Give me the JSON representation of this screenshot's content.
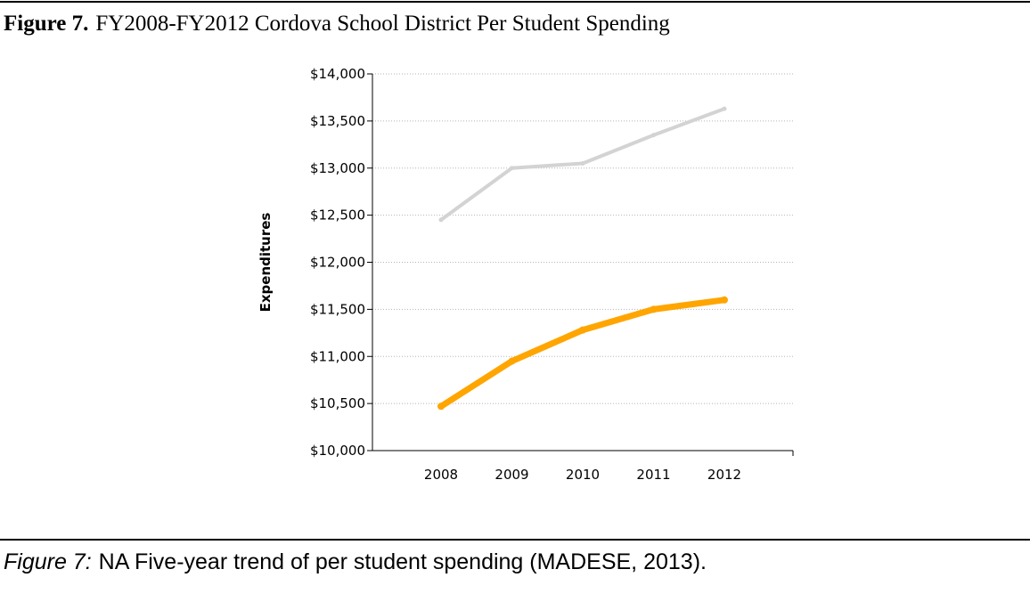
{
  "figure": {
    "number_label": "Figure 7.",
    "title": "FY2008-FY2012 Cordova School District Per Student Spending"
  },
  "caption": {
    "label": "Figure 7:",
    "text": "NA Five-year trend of per student spending (MADESE, 2013)."
  },
  "chart_data": {
    "type": "line",
    "x": [
      2008,
      2009,
      2010,
      2011,
      2012
    ],
    "x_tick_labels": [
      "2008",
      "2009",
      "2010",
      "2011",
      "2012"
    ],
    "ylabel": "Expenditures",
    "ylim": [
      10000,
      14000
    ],
    "y_ticks": [
      10000,
      10500,
      11000,
      11500,
      12000,
      12500,
      13000,
      13500,
      14000
    ],
    "y_tick_labels": [
      "$10,000",
      "$10,500",
      "$11,000",
      "$11,500",
      "$12,000",
      "$12,500",
      "$13,000",
      "$13,500",
      "$14,000"
    ],
    "grid": "horizontal dotted",
    "legend": "none",
    "series": [
      {
        "values": [
          12450,
          13000,
          13050,
          13350,
          13630
        ],
        "color": "#d3d3d3"
      },
      {
        "values": [
          10470,
          10950,
          11280,
          11500,
          11600
        ],
        "color": "#ffa500"
      }
    ]
  }
}
